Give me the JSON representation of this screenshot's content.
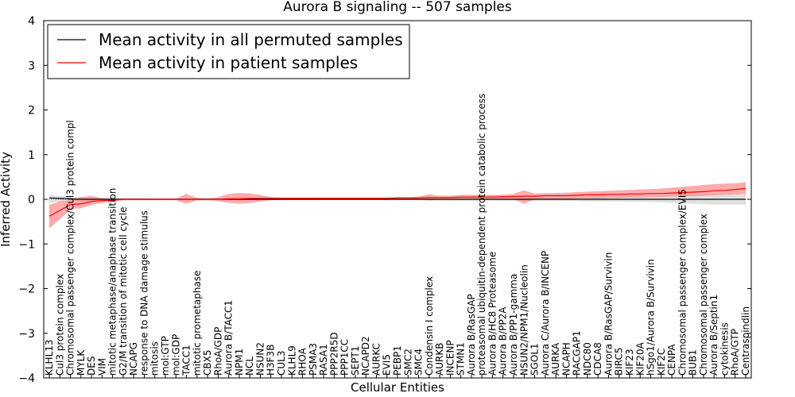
{
  "chart_data": {
    "type": "line",
    "title": "Aurora B signaling -- 507 samples",
    "xlabel": "Cellular Entities",
    "ylabel": "Inferred Activity",
    "ylim": [
      -4,
      4
    ],
    "yticks": [
      "4",
      "3",
      "2",
      "1",
      "0",
      "−1",
      "−2",
      "−3",
      "−4"
    ],
    "legend": {
      "placement": "top-left",
      "entries": [
        {
          "label": "Mean activity in all permuted samples",
          "color": "#000000"
        },
        {
          "label": "Mean activity in patient samples",
          "color": "#ff0000"
        }
      ]
    },
    "categories": [
      "KLHL13",
      "Cul3 protein complex",
      "Chromosomal passenger complex/Cul3 protein compl",
      "MYLK",
      "DES",
      "VIM",
      "mitotic metaphase/anaphase transition",
      "G2/M transition of mitotic cell cycle",
      "NCAPG",
      "response to DNA damage stimulus",
      "mitosis",
      "mol:GTP",
      "mol:GDP",
      "TACC1",
      "mitotic prometaphase",
      "CBX5",
      "RhoA/GDP",
      "Aurora B/TACC1",
      "NPM1",
      "NCL",
      "NSUN2",
      "H3F3B",
      "CUL3",
      "KLHL9",
      "RHOA",
      "PSMA3",
      "RASA1",
      "PPP2R5D",
      "PPP1CC",
      "SEPT1",
      "NCAPD2",
      "AURKC",
      "EVI5",
      "PEBP1",
      "SMC2",
      "SMC4",
      "Condensin I complex",
      "AURKB",
      "INCENP",
      "STMN1",
      "Aurora B/RasGAP",
      "proteasomal ubiquitin-dependent protein catabolic process",
      "Aurora B/HC8 Proteasome",
      "Aurora B/PP2A",
      "Aurora B/PP1-gamma",
      "NSUN2/NPM1/Nucleolin",
      "SGOL1",
      "Aurora C/Aurora B/INCENP",
      "AURKA",
      "NCAPH",
      "RACGAP1",
      "NDC80",
      "CDCA8",
      "Aurora B/RasGAP/Survivin",
      "BIRC5",
      "KIF23",
      "KIF20A",
      "hSgo1/Aurora B/Survivin",
      "KIF2C",
      "CENPA",
      "Chromosomal passenger complex/EVI5",
      "BUB1",
      "Chromosomal passenger complex",
      "Aurora B/Septin1",
      "cytokinesis",
      "RhoA/GTP",
      "Centraspindlin"
    ],
    "series": [
      {
        "name": "Mean activity in all permuted samples",
        "color": "#000000",
        "values": [
          0.03,
          0.02,
          0.01,
          0.0,
          0.0,
          0.0,
          0.0,
          0.0,
          0.0,
          0.0,
          0.0,
          0.0,
          0.0,
          0.0,
          0.0,
          0.0,
          0.0,
          0.0,
          0.0,
          0.0,
          0.0,
          0.0,
          0.0,
          0.0,
          0.0,
          0.0,
          0.0,
          0.0,
          0.0,
          0.0,
          0.0,
          0.0,
          0.0,
          0.0,
          0.0,
          0.0,
          0.0,
          0.0,
          0.0,
          0.0,
          0.0,
          0.0,
          0.0,
          0.0,
          0.0,
          0.0,
          0.0,
          0.0,
          0.0,
          0.0,
          0.0,
          0.0,
          0.0,
          0.0,
          0.0,
          0.0,
          0.0,
          0.0,
          0.0,
          0.0,
          0.0,
          0.0,
          0.0,
          0.0,
          0.0,
          0.0,
          0.0
        ],
        "band_lower": [
          -0.08,
          -0.06,
          -0.05,
          -0.05,
          -0.04,
          -0.04,
          -0.03,
          -0.03,
          -0.02,
          -0.02,
          -0.02,
          -0.02,
          -0.02,
          -0.02,
          -0.03,
          -0.03,
          -0.02,
          -0.02,
          -0.02,
          -0.02,
          -0.02,
          -0.02,
          -0.02,
          -0.02,
          -0.02,
          -0.02,
          -0.02,
          -0.02,
          -0.02,
          -0.02,
          -0.02,
          -0.02,
          -0.02,
          -0.02,
          -0.02,
          -0.02,
          -0.03,
          -0.03,
          -0.03,
          -0.03,
          -0.03,
          -0.03,
          -0.03,
          -0.03,
          -0.03,
          -0.03,
          -0.04,
          -0.04,
          -0.04,
          -0.04,
          -0.04,
          -0.05,
          -0.05,
          -0.05,
          -0.05,
          -0.06,
          -0.06,
          -0.06,
          -0.07,
          -0.08,
          -0.09,
          -0.1,
          -0.11,
          -0.12,
          -0.12,
          -0.12,
          -0.12
        ],
        "band_upper": [
          0.1,
          0.08,
          0.06,
          0.05,
          0.05,
          0.04,
          0.04,
          0.03,
          0.03,
          0.03,
          0.02,
          0.02,
          0.02,
          0.02,
          0.03,
          0.03,
          0.02,
          0.02,
          0.02,
          0.02,
          0.02,
          0.02,
          0.02,
          0.02,
          0.02,
          0.02,
          0.02,
          0.02,
          0.02,
          0.02,
          0.02,
          0.02,
          0.02,
          0.02,
          0.02,
          0.02,
          0.03,
          0.03,
          0.03,
          0.03,
          0.03,
          0.03,
          0.03,
          0.03,
          0.03,
          0.03,
          0.04,
          0.04,
          0.04,
          0.04,
          0.04,
          0.05,
          0.05,
          0.05,
          0.05,
          0.06,
          0.06,
          0.06,
          0.07,
          0.08,
          0.09,
          0.1,
          0.11,
          0.12,
          0.12,
          0.12,
          0.12
        ]
      },
      {
        "name": "Mean activity in patient samples",
        "color": "#ff0000",
        "values": [
          -0.38,
          -0.25,
          -0.12,
          -0.1,
          -0.05,
          -0.03,
          -0.02,
          0.0,
          0.0,
          0.0,
          0.0,
          0.0,
          0.0,
          0.0,
          0.0,
          0.0,
          0.0,
          0.01,
          0.01,
          0.02,
          0.02,
          0.02,
          0.02,
          0.02,
          0.02,
          0.02,
          0.02,
          0.02,
          0.02,
          0.02,
          0.02,
          0.02,
          0.02,
          0.03,
          0.03,
          0.03,
          0.04,
          0.04,
          0.04,
          0.05,
          0.05,
          0.05,
          0.05,
          0.06,
          0.06,
          0.07,
          0.07,
          0.08,
          0.08,
          0.08,
          0.09,
          0.1,
          0.1,
          0.11,
          0.11,
          0.12,
          0.12,
          0.13,
          0.13,
          0.14,
          0.15,
          0.16,
          0.17,
          0.19,
          0.2,
          0.22,
          0.24
        ],
        "band_lower": [
          -0.65,
          -0.45,
          -0.22,
          -0.2,
          -0.13,
          -0.08,
          -0.05,
          -0.02,
          -0.02,
          -0.02,
          -0.02,
          -0.02,
          -0.02,
          -0.1,
          -0.02,
          -0.02,
          -0.04,
          -0.08,
          -0.1,
          -0.08,
          -0.05,
          -0.02,
          -0.01,
          -0.01,
          -0.01,
          -0.01,
          0.0,
          0.0,
          0.0,
          0.0,
          0.0,
          0.0,
          0.0,
          0.0,
          0.0,
          0.0,
          -0.02,
          0.0,
          0.0,
          0.0,
          0.0,
          0.0,
          0.0,
          0.0,
          0.0,
          -0.1,
          0.0,
          0.0,
          0.0,
          0.0,
          0.02,
          0.02,
          0.02,
          0.03,
          0.03,
          0.04,
          0.04,
          0.05,
          0.05,
          0.06,
          0.07,
          0.07,
          0.08,
          0.09,
          0.1,
          0.11,
          0.12
        ],
        "band_upper": [
          -0.12,
          -0.05,
          -0.02,
          0.05,
          0.08,
          0.02,
          0.0,
          0.02,
          0.02,
          0.02,
          0.02,
          0.02,
          0.02,
          0.12,
          0.03,
          0.02,
          0.05,
          0.12,
          0.14,
          0.13,
          0.1,
          0.05,
          0.04,
          0.04,
          0.04,
          0.04,
          0.04,
          0.04,
          0.04,
          0.04,
          0.04,
          0.04,
          0.04,
          0.05,
          0.05,
          0.06,
          0.11,
          0.08,
          0.08,
          0.1,
          0.1,
          0.1,
          0.1,
          0.1,
          0.12,
          0.2,
          0.13,
          0.14,
          0.14,
          0.15,
          0.16,
          0.17,
          0.18,
          0.19,
          0.2,
          0.21,
          0.22,
          0.23,
          0.24,
          0.26,
          0.28,
          0.3,
          0.32,
          0.34,
          0.35,
          0.36,
          0.38
        ]
      }
    ]
  }
}
